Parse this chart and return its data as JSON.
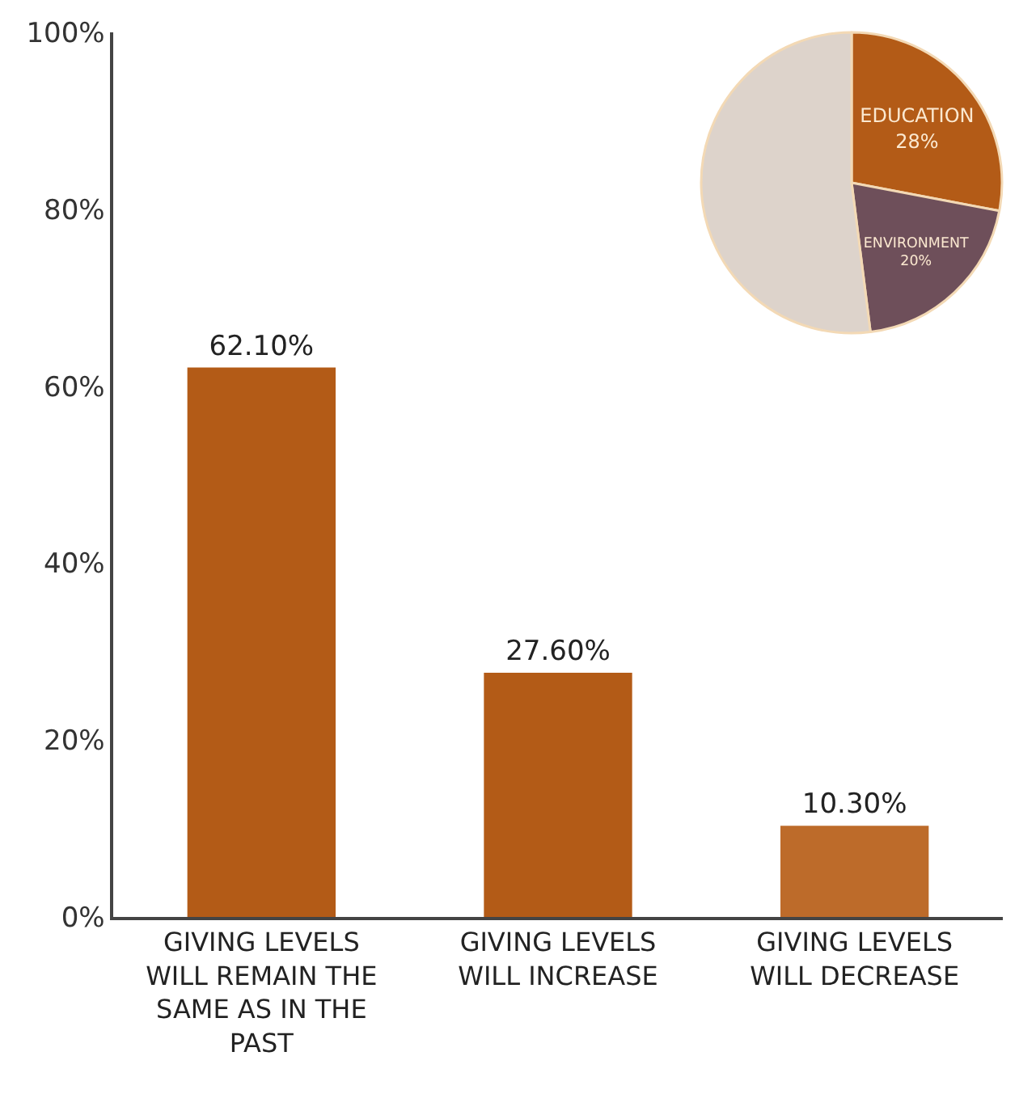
{
  "chart_data": [
    {
      "type": "bar",
      "categories": [
        "GIVING LEVELS WILL REMAIN THE SAME AS IN THE PAST",
        "GIVING LEVELS WILL INCREASE",
        "GIVING LEVELS WILL DECREASE"
      ],
      "values": [
        62.1,
        27.6,
        10.3
      ],
      "colors": [
        "#b35b17",
        "#b35b17",
        "#bd6b2a"
      ],
      "value_labels": [
        "62.10%",
        "27.60%",
        "10.30%"
      ],
      "ylim": [
        0,
        100
      ],
      "yticks": [
        {
          "value": 0,
          "label": "0%"
        },
        {
          "value": 20,
          "label": "20%"
        },
        {
          "value": 40,
          "label": "40%"
        },
        {
          "value": 60,
          "label": "60%"
        },
        {
          "value": 80,
          "label": "80%"
        },
        {
          "value": 100,
          "label": "100%"
        }
      ],
      "legend": false
    },
    {
      "type": "pie",
      "categories": [
        "EDUCATION",
        "ENVIRONMENT",
        null
      ],
      "values": [
        28,
        20,
        52
      ],
      "colors": [
        "#b35b17",
        "#6e4f5a",
        "#ddd3cb"
      ],
      "value_labels": [
        "28%",
        "20%",
        null
      ],
      "legend": false
    }
  ]
}
